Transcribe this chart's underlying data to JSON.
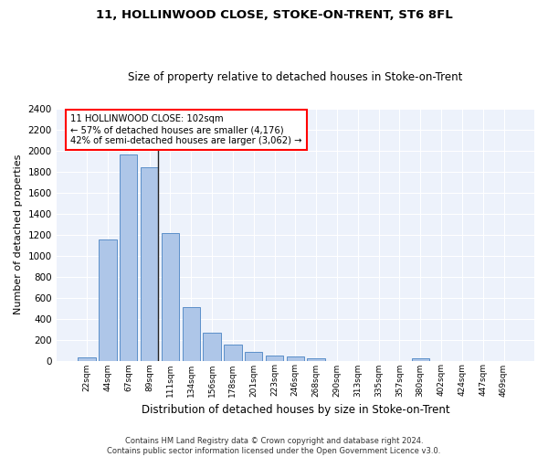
{
  "title1": "11, HOLLINWOOD CLOSE, STOKE-ON-TRENT, ST6 8FL",
  "title2": "Size of property relative to detached houses in Stoke-on-Trent",
  "xlabel": "Distribution of detached houses by size in Stoke-on-Trent",
  "ylabel": "Number of detached properties",
  "footnote1": "Contains HM Land Registry data © Crown copyright and database right 2024.",
  "footnote2": "Contains public sector information licensed under the Open Government Licence v3.0.",
  "categories": [
    "22sqm",
    "44sqm",
    "67sqm",
    "89sqm",
    "111sqm",
    "134sqm",
    "156sqm",
    "178sqm",
    "201sqm",
    "223sqm",
    "246sqm",
    "268sqm",
    "290sqm",
    "313sqm",
    "335sqm",
    "357sqm",
    "380sqm",
    "402sqm",
    "424sqm",
    "447sqm",
    "469sqm"
  ],
  "values": [
    30,
    1150,
    1960,
    1840,
    1210,
    510,
    265,
    155,
    80,
    48,
    40,
    20,
    0,
    0,
    0,
    0,
    20,
    0,
    0,
    0,
    0
  ],
  "bar_color": "#aec6e8",
  "bar_edge_color": "#5b8fc9",
  "bg_color": "#edf2fb",
  "grid_color": "#ffffff",
  "ylim": [
    0,
    2400
  ],
  "yticks": [
    0,
    200,
    400,
    600,
    800,
    1000,
    1200,
    1400,
    1600,
    1800,
    2000,
    2200,
    2400
  ],
  "property_bar_index": 3,
  "annotation_line1": "11 HOLLINWOOD CLOSE: 102sqm",
  "annotation_line2": "← 57% of detached houses are smaller (4,176)",
  "annotation_line3": "42% of semi-detached houses are larger (3,062) →"
}
